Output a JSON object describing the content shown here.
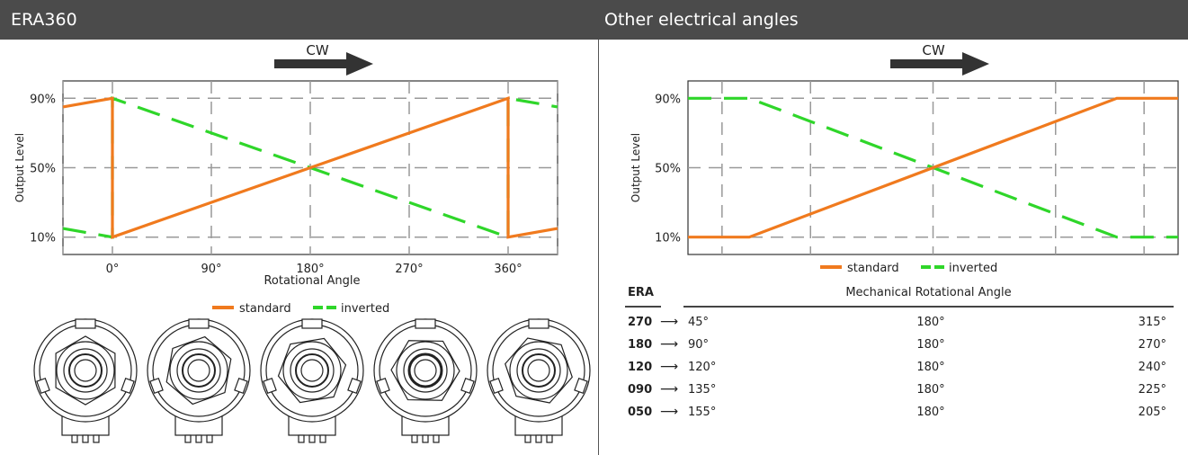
{
  "headers": {
    "left": "ERA360",
    "right": "Other electrical angles"
  },
  "direction_label": "CW",
  "colors": {
    "standard": "#f07a1e",
    "inverted": "#2fd62a",
    "header": "#4b4b4b"
  },
  "chart_data": [
    {
      "type": "line",
      "title": "ERA360",
      "ylabel": "Output Level",
      "xlabel": "Rotational Angle",
      "yticks": [
        "10%",
        "50%",
        "90%"
      ],
      "xticks": [
        "0°",
        "90°",
        "180°",
        "270°",
        "360°"
      ],
      "ylim": [
        0,
        100
      ],
      "xlim": [
        -45,
        405
      ],
      "grid": true,
      "legend_position": "bottom",
      "series": [
        {
          "name": "standard",
          "x": [
            -45,
            0,
            0,
            360,
            360,
            405
          ],
          "y": [
            85,
            90,
            10,
            90,
            10,
            15
          ]
        },
        {
          "name": "inverted",
          "x": [
            -45,
            0,
            0,
            360,
            360,
            405
          ],
          "y": [
            15,
            10,
            90,
            10,
            90,
            85
          ]
        }
      ]
    },
    {
      "type": "line",
      "ylabel": "Output Level",
      "yticks": [
        "10%",
        "50%",
        "90%"
      ],
      "ylim": [
        0,
        100
      ],
      "xlim": [
        0,
        360
      ],
      "grid": true,
      "legend_position": "bottom",
      "series": [
        {
          "name": "standard",
          "x": [
            0,
            45,
            315,
            360
          ],
          "y": [
            10,
            10,
            90,
            90
          ]
        },
        {
          "name": "inverted",
          "x": [
            0,
            45,
            315,
            360
          ],
          "y": [
            90,
            90,
            10,
            10
          ]
        }
      ]
    }
  ],
  "table": {
    "era_header": "ERA",
    "angle_header": "Mechanical Rotational Angle",
    "rows": [
      {
        "era": "270",
        "start": "45°",
        "mid": "180°",
        "end": "315°"
      },
      {
        "era": "180",
        "start": "90°",
        "mid": "180°",
        "end": "270°"
      },
      {
        "era": "120",
        "start": "120°",
        "mid": "180°",
        "end": "240°"
      },
      {
        "era": "090",
        "start": "135°",
        "mid": "180°",
        "end": "225°"
      },
      {
        "era": "050",
        "start": "155°",
        "mid": "180°",
        "end": "205°"
      }
    ]
  }
}
